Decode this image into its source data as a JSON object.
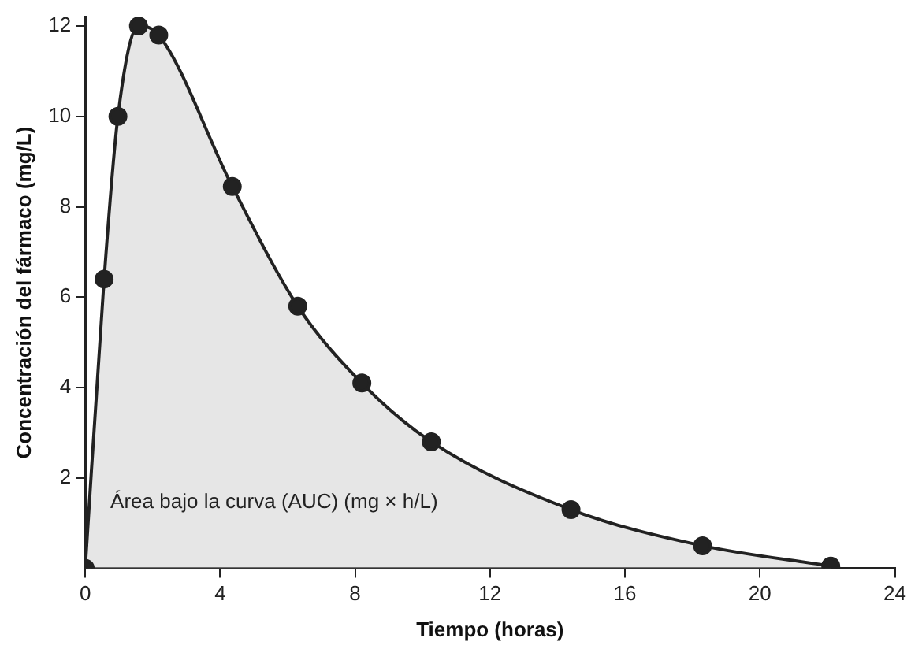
{
  "chart_data": {
    "type": "area",
    "xlabel": "Tiempo (horas)",
    "ylabel": "Concentración del fármaco (mg/L)",
    "x": [
      0,
      0.56,
      0.97,
      1.58,
      2.18,
      4.36,
      6.3,
      8.2,
      10.26,
      14.4,
      18.3,
      22.1
    ],
    "series": [
      {
        "color": "#222222",
        "values": [
          0,
          6.4,
          10.0,
          12.0,
          11.8,
          8.45,
          5.8,
          4.1,
          2.8,
          1.3,
          0.5,
          0.05
        ]
      }
    ],
    "xlim": [
      0,
      24
    ],
    "xticks": [
      0,
      4,
      8,
      12,
      16,
      20,
      24
    ],
    "ylim": [
      0,
      12.2
    ],
    "yticks": [
      2,
      4,
      6,
      8,
      10,
      12
    ],
    "marker": "circle",
    "grid": false,
    "legend": false,
    "annotations": [
      "Área bajo la curva (AUC) (mg × h/L)"
    ]
  }
}
